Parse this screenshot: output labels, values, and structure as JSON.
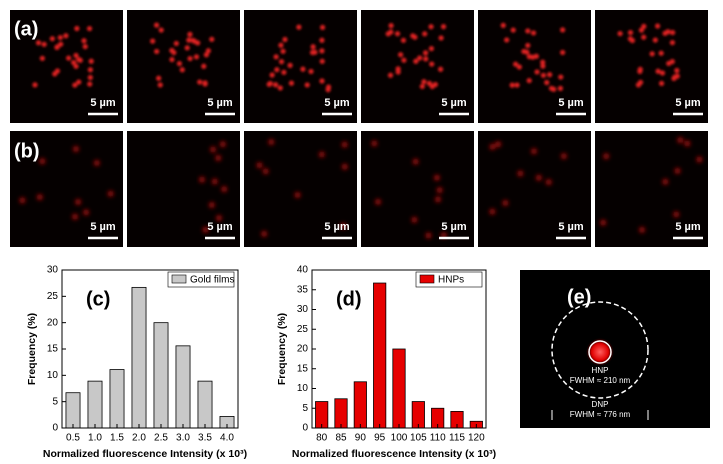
{
  "panels": {
    "a": "(a)",
    "b": "(b)",
    "e": "(e)",
    "scale_bar": "5 µm",
    "e_hnp": "HNP",
    "e_hnp_fwhm": "FWHM ≈ 210 nm",
    "e_dnp": "DNP",
    "e_dnp_fwhm": "FWHM ≈ 776 nm"
  },
  "chart_data": [
    {
      "type": "bar",
      "label": "(c)",
      "xlabel": "Normalized fluorescence Intensity (x 10³)",
      "ylabel": "Frequency (%)",
      "categories": [
        "0.5",
        "1.0",
        "1.5",
        "2.0",
        "2.5",
        "3.0",
        "3.5",
        "4.0"
      ],
      "series": [
        {
          "name": "Gold films",
          "color": "#c8c8c8",
          "values": [
            6.7,
            8.9,
            11.1,
            26.7,
            20.0,
            15.6,
            8.9,
            2.2
          ]
        }
      ],
      "ylim": [
        0,
        30
      ],
      "yticks": [
        0,
        5,
        10,
        15,
        20,
        25,
        30
      ]
    },
    {
      "type": "bar",
      "label": "(d)",
      "xlabel": "Normalized fluorescence Intensity (x 10³)",
      "ylabel": "Frequency (%)",
      "categories": [
        "80",
        "85",
        "90",
        "95",
        "100",
        "105",
        "110",
        "115",
        "120"
      ],
      "series": [
        {
          "name": "HNPs",
          "color": "#e60000",
          "values": [
            6.7,
            7.4,
            11.7,
            36.7,
            20.0,
            6.7,
            5.0,
            4.2,
            1.7
          ]
        }
      ],
      "ylim": [
        0,
        40
      ],
      "yticks": [
        0,
        5,
        10,
        15,
        20,
        25,
        30,
        35,
        40
      ]
    }
  ]
}
